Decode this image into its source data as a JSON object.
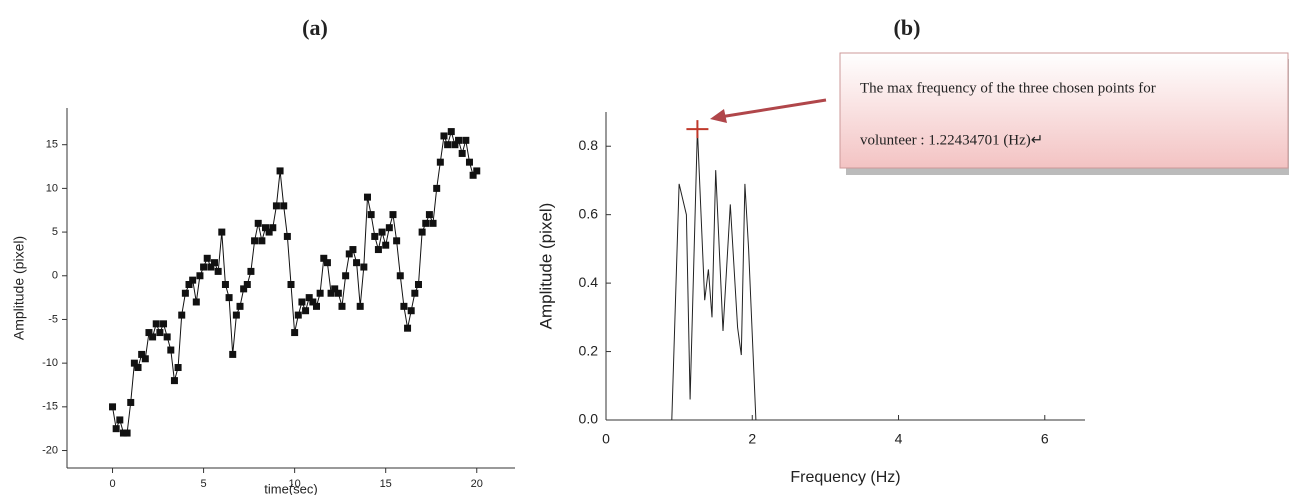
{
  "chart_data": [
    {
      "type": "line",
      "title": "(a)",
      "x_label": "time(sec)",
      "y_label": "Amplitude  (pixel)",
      "color": "#111111",
      "marker": "square",
      "xlim": [
        -2.5,
        22.1
      ],
      "ylim": [
        -22,
        19.2
      ],
      "xticks": [
        0,
        5,
        10,
        15,
        20
      ],
      "yticks": [
        -20,
        -15,
        -10,
        -5,
        0,
        5,
        10,
        15
      ],
      "x": [
        0,
        0.2,
        0.4,
        0.6,
        0.8,
        1.0,
        1.2,
        1.4,
        1.6,
        1.8,
        2.0,
        2.2,
        2.4,
        2.6,
        2.8,
        3.0,
        3.2,
        3.4,
        3.6,
        3.8,
        4.0,
        4.2,
        4.4,
        4.6,
        4.8,
        5.0,
        5.2,
        5.4,
        5.6,
        5.8,
        6.0,
        6.2,
        6.4,
        6.6,
        6.8,
        7.0,
        7.2,
        7.4,
        7.6,
        7.8,
        8.0,
        8.2,
        8.4,
        8.6,
        8.8,
        9.0,
        9.2,
        9.4,
        9.6,
        9.8,
        10.0,
        10.2,
        10.4,
        10.6,
        10.8,
        11.0,
        11.2,
        11.4,
        11.6,
        11.8,
        12.0,
        12.2,
        12.4,
        12.6,
        12.8,
        13.0,
        13.2,
        13.4,
        13.6,
        13.8,
        14.0,
        14.2,
        14.4,
        14.6,
        14.8,
        15.0,
        15.2,
        15.4,
        15.6,
        15.8,
        16.0,
        16.2,
        16.4,
        16.6,
        16.8,
        17.0,
        17.2,
        17.4,
        17.6,
        17.8,
        18.0,
        18.2,
        18.4,
        18.6,
        18.8,
        19.0,
        19.2,
        19.4,
        19.6,
        19.8,
        20.0
      ],
      "y": [
        -15,
        -17.5,
        -16.5,
        -18,
        -18,
        -14.5,
        -10,
        -10.5,
        -9,
        -9.5,
        -6.5,
        -7,
        -5.5,
        -6.5,
        -5.5,
        -7,
        -8.5,
        -12,
        -10.5,
        -4.5,
        -2,
        -1,
        -0.5,
        -3,
        0,
        1,
        2,
        1,
        1.5,
        0.5,
        5,
        -1,
        -2.5,
        -9,
        -4.5,
        -3.5,
        -1.5,
        -1,
        0.5,
        4,
        6,
        4,
        5.5,
        5,
        5.5,
        8,
        12,
        8,
        4.5,
        -1,
        -6.5,
        -4.5,
        -3,
        -4,
        -2.5,
        -3,
        -3.5,
        -2,
        2,
        1.5,
        -2,
        -1.5,
        -2,
        -3.5,
        0,
        2.5,
        3,
        1.5,
        -3.5,
        1,
        9,
        7,
        4.5,
        3,
        5,
        3.5,
        5.5,
        7,
        4,
        0,
        -3.5,
        -6,
        -4,
        -2,
        -1,
        5,
        6,
        7,
        6,
        10,
        13,
        16,
        15,
        16.5,
        15,
        15.5,
        14,
        15.5,
        13,
        11.5,
        12
      ]
    },
    {
      "type": "line",
      "title": "(b)",
      "x_label": "Frequency (Hz)",
      "y_label": "Amplitude  (pixel)",
      "color": "#222222",
      "xlim": [
        0,
        6.55
      ],
      "ylim": [
        0,
        0.9
      ],
      "xticks": [
        0,
        2,
        4,
        6
      ],
      "yticks": [
        {
          "value": 0,
          "label": "0.0"
        },
        0.2,
        0.4,
        0.6,
        0.8
      ],
      "x": [
        0.9,
        1.0,
        1.1,
        1.15,
        1.25,
        1.35,
        1.4,
        1.45,
        1.5,
        1.6,
        1.7,
        1.8,
        1.85,
        1.9,
        1.95,
        2.05
      ],
      "y": [
        0,
        0.69,
        0.6,
        0.06,
        0.85,
        0.35,
        0.44,
        0.3,
        0.73,
        0.26,
        0.63,
        0.27,
        0.19,
        0.69,
        0.5,
        0
      ],
      "annotation": {
        "lines": [
          "The max frequency of the three chosen points for",
          "volunteer : 1.22434701 (Hz)↵"
        ],
        "x": 1.25,
        "y": 0.85,
        "color": "#c0392b"
      }
    }
  ]
}
